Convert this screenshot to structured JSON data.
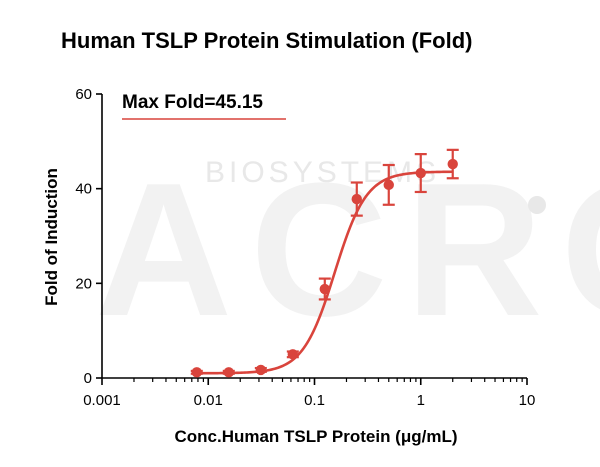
{
  "watermark": {
    "text_large": "ACRO",
    "text_small": "BIOSYSTEMS"
  },
  "chart_data": {
    "type": "scatter",
    "title": "Human TSLP Protein Stimulation (Fold)",
    "xlabel": "Conc.Human TSLP Protein (μg/mL)",
    "ylabel": "Fold of Induction",
    "xscale": "log",
    "xlim": [
      0.001,
      10
    ],
    "ylim": [
      0,
      60
    ],
    "x_ticks": [
      0.001,
      0.01,
      0.1,
      1,
      10
    ],
    "x_tick_labels": [
      "0.001",
      "0.01",
      "0.1",
      "1",
      "10"
    ],
    "y_ticks": [
      0,
      20,
      40,
      60
    ],
    "y_tick_labels": [
      "0",
      "20",
      "40",
      "60"
    ],
    "grid": false,
    "annotation": "Max Fold=45.15",
    "color": "#d9443c",
    "series": [
      {
        "x": [
          0.0078,
          0.0156,
          0.03125,
          0.0625,
          0.125,
          0.25,
          0.5,
          1,
          2
        ],
        "y": [
          1.2,
          1.2,
          1.7,
          5.0,
          18.8,
          37.8,
          40.8,
          43.3,
          45.2
        ],
        "error": [
          0.3,
          0.3,
          0.4,
          0.6,
          2.2,
          3.5,
          4.2,
          4.0,
          3.0
        ]
      }
    ],
    "fit_curve": {
      "type": "4PL",
      "bottom": 1.0,
      "top": 43.6,
      "ec50": 0.155,
      "hill": 2.9
    }
  }
}
